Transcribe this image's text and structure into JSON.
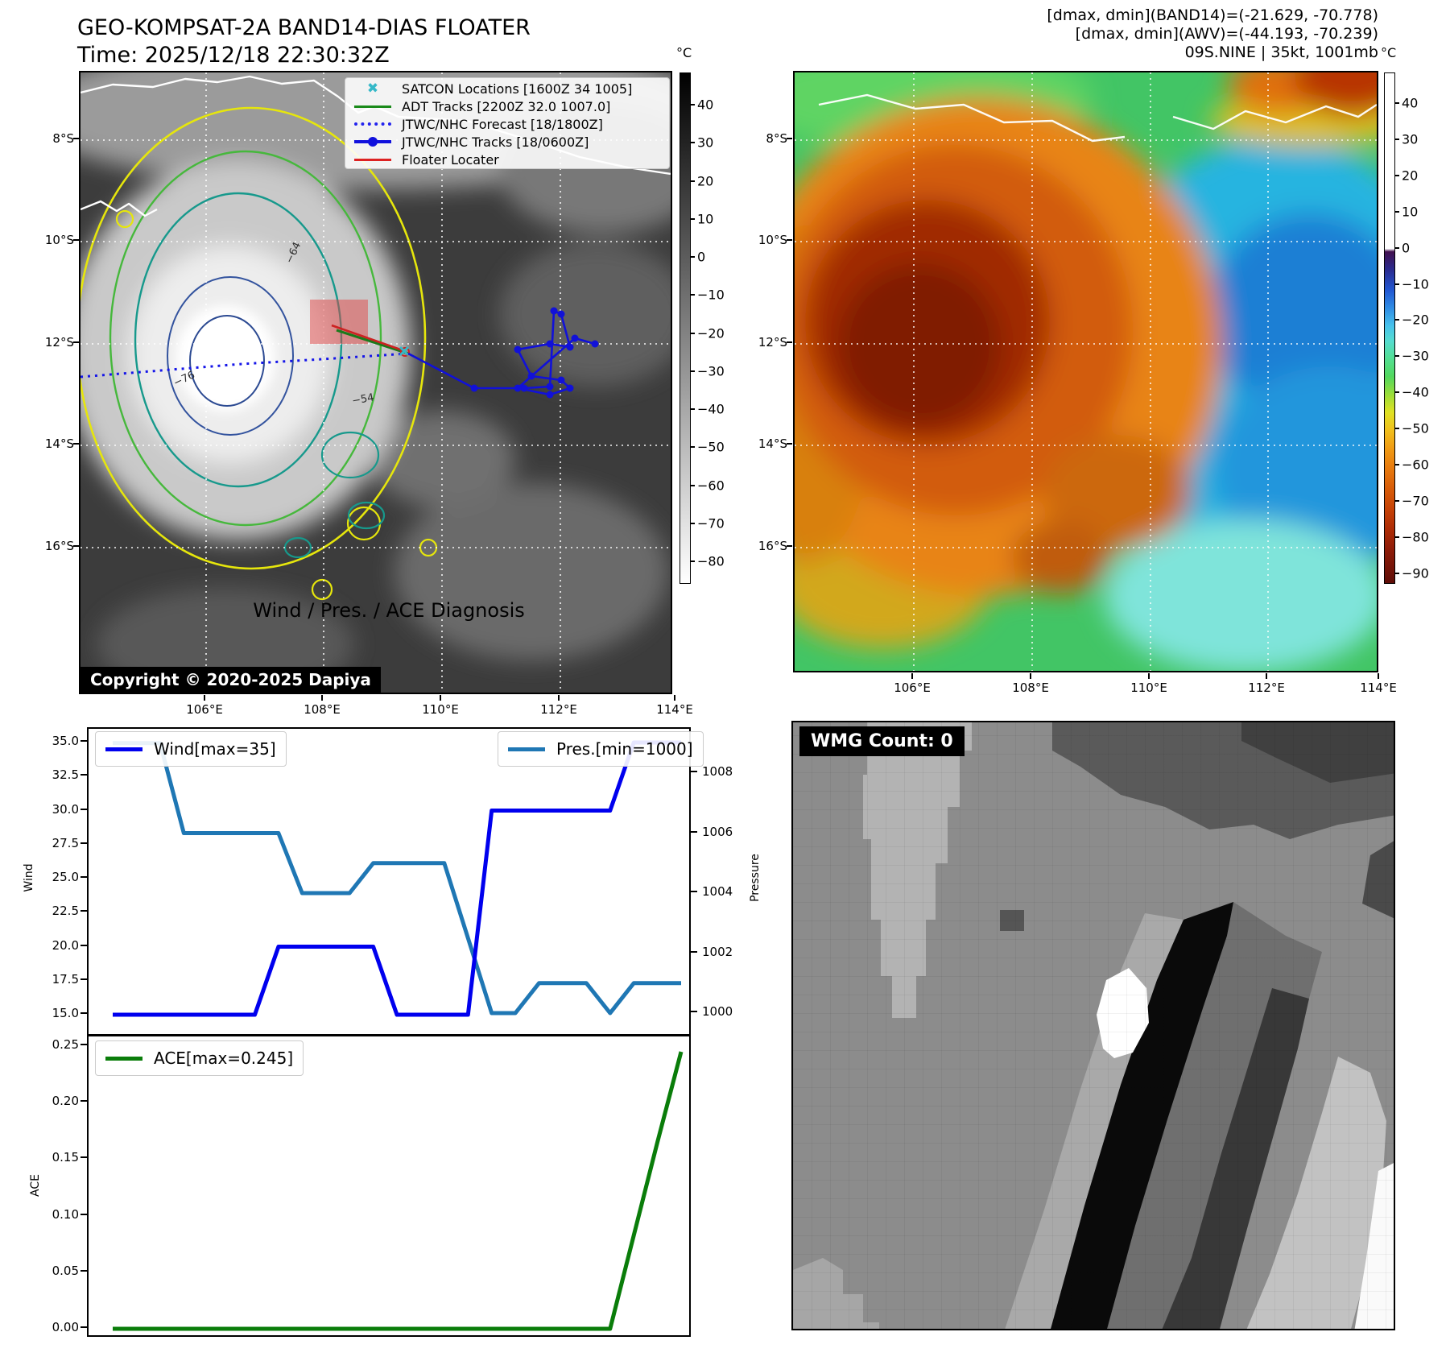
{
  "header": {
    "title": "GEO-KOMPSAT-2A BAND14-DIAS FLOATER",
    "time_line": "Time: 2025/12/18 22:30:32Z",
    "info_lines": [
      "[dmax, dmin](BAND14)=(-21.629, -70.778)",
      "[dmax, dmin](AWV)=(-44.193, -70.239)",
      "09S.NINE | 35kt, 1001mb"
    ]
  },
  "map_left": {
    "legend": [
      {
        "label": "SATCON Locations [1600Z 34 1005]",
        "marker": "x-marker",
        "color": "#35b8c8"
      },
      {
        "label": "ADT Tracks [2200Z 32.0 1007.0]",
        "marker": "line",
        "color": "#1a8a1a"
      },
      {
        "label": "JTWC/NHC Forecast [18/1800Z]",
        "marker": "dotted-line",
        "color": "#2222ee"
      },
      {
        "label": "JTWC/NHC Tracks [18/0600Z]",
        "marker": "line-dot",
        "color": "#1111dd"
      },
      {
        "label": "Floater Locater",
        "marker": "line",
        "color": "#dd2222"
      }
    ],
    "copyright": "Copyright © 2020-2025 Dapiya",
    "contour_labels": [
      "-64",
      "-76",
      "-54"
    ],
    "x_ticks": [
      "106°E",
      "108°E",
      "110°E",
      "112°E",
      "114°E"
    ],
    "y_ticks": [
      "8°S",
      "10°S",
      "12°S",
      "14°S",
      "16°S"
    ],
    "colorbar": {
      "unit": "°C",
      "ticks": [
        "40",
        "30",
        "20",
        "10",
        "0",
        "−10",
        "−20",
        "−30",
        "−40",
        "−50",
        "−60",
        "−70",
        "−80"
      ]
    }
  },
  "map_right": {
    "x_ticks": [
      "106°E",
      "108°E",
      "110°E",
      "112°E",
      "114°E"
    ],
    "y_ticks": [
      "8°S",
      "10°S",
      "12°S",
      "14°S",
      "16°S"
    ],
    "colorbar": {
      "unit": "°C",
      "ticks": [
        "40",
        "30",
        "20",
        "10",
        "0",
        "−10",
        "−20",
        "−30",
        "−40",
        "−50",
        "−60",
        "−70",
        "−80",
        "−90"
      ]
    }
  },
  "diagnosis": {
    "title": "Wind / Pres. / ACE Diagnosis",
    "wind_legend": "Wind[max=35]",
    "pres_legend": "Pres.[min=1000]",
    "ace_legend": "ACE[max=0.245]",
    "wind_ylabel": "Wind",
    "pres_ylabel": "Pressure",
    "ace_ylabel": "ACE",
    "wind_yticks": [
      "35.0",
      "32.5",
      "30.0",
      "27.5",
      "25.0",
      "22.5",
      "20.0",
      "17.5",
      "15.0"
    ],
    "pres_yticks": [
      "1008",
      "1006",
      "1004",
      "1002",
      "1000"
    ],
    "ace_yticks": [
      "0.25",
      "0.20",
      "0.15",
      "0.10",
      "0.05",
      "0.00"
    ]
  },
  "wmg": {
    "count_label": "WMG Count: 0"
  },
  "chart_data": [
    {
      "type": "line",
      "name": "Wind",
      "color": "#0000ee",
      "ylabel": "Wind",
      "ylim": [
        14,
        36
      ],
      "yticks": [
        15,
        17.5,
        20,
        22.5,
        25,
        27.5,
        30,
        32.5,
        35
      ],
      "values": [
        15,
        15,
        15,
        15,
        15,
        15,
        15,
        20,
        20,
        20,
        20,
        20,
        15,
        15,
        15,
        15,
        30,
        30,
        30,
        30,
        30,
        30,
        35,
        35,
        35
      ]
    },
    {
      "type": "line",
      "name": "Pressure",
      "color": "#1f77b4",
      "ylabel": "Pressure",
      "ylim": [
        999.5,
        1009.5
      ],
      "yticks": [
        1000,
        1002,
        1004,
        1006,
        1008
      ],
      "values": [
        1009,
        1009,
        1009,
        1006,
        1006,
        1006,
        1006,
        1006,
        1004,
        1004,
        1004,
        1005,
        1005,
        1005,
        1005,
        1002.5,
        1000,
        1000,
        1001,
        1001,
        1001,
        1000,
        1001,
        1001,
        1001
      ]
    },
    {
      "type": "line",
      "name": "ACE",
      "color": "#0a7d0a",
      "ylabel": "ACE",
      "ylim": [
        0,
        0.25
      ],
      "yticks": [
        0,
        0.05,
        0.1,
        0.15,
        0.2,
        0.25
      ],
      "values": [
        0,
        0,
        0,
        0,
        0,
        0,
        0,
        0,
        0,
        0,
        0,
        0,
        0,
        0,
        0,
        0,
        0,
        0,
        0,
        0,
        0,
        0,
        0.0826,
        0.1652,
        0.245
      ]
    }
  ]
}
